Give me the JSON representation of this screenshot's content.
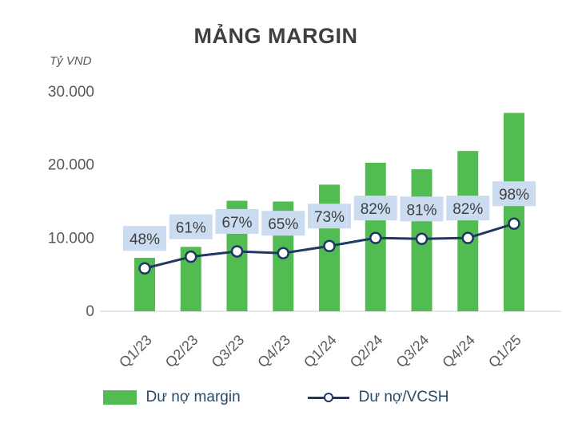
{
  "title": "MẢNG MARGIN",
  "colors": {
    "bar": "#52BB52",
    "line": "#1F3864",
    "label_band": "#CBDCF1",
    "axis_text": "#595959",
    "title_text": "#3F3F3F",
    "legend_text": "#2B4A66",
    "pct_text": "#3F3F3F",
    "axis_line": "#CFCFCF"
  },
  "chart_data": {
    "type": "bar+line combo",
    "title": "MẢNG MARGIN",
    "ylabel": "Tỷ VND",
    "ylim": [
      0,
      30000
    ],
    "grid": false,
    "legend_position": "bottom",
    "categories": [
      "Q1/23",
      "Q2/23",
      "Q3/23",
      "Q4/23",
      "Q1/24",
      "Q2/24",
      "Q3/24",
      "Q4/24",
      "Q1/25"
    ],
    "y_ticks": [
      {
        "value": 0,
        "label": "0"
      },
      {
        "value": 10000,
        "label": "10.000"
      },
      {
        "value": 20000,
        "label": "20.000"
      },
      {
        "value": 30000,
        "label": "30.000"
      }
    ],
    "series": [
      {
        "name": "Dư nợ margin",
        "type": "bar",
        "values": [
          7300,
          8800,
          15100,
          15000,
          17300,
          20300,
          19400,
          21900,
          27100
        ]
      },
      {
        "name": "Dư nợ/VCSH",
        "type": "line",
        "values_pct": [
          48,
          61,
          67,
          65,
          73,
          82,
          81,
          82,
          98
        ],
        "labels": [
          "48%",
          "61%",
          "67%",
          "65%",
          "73%",
          "82%",
          "81%",
          "82%",
          "98%"
        ]
      }
    ]
  }
}
